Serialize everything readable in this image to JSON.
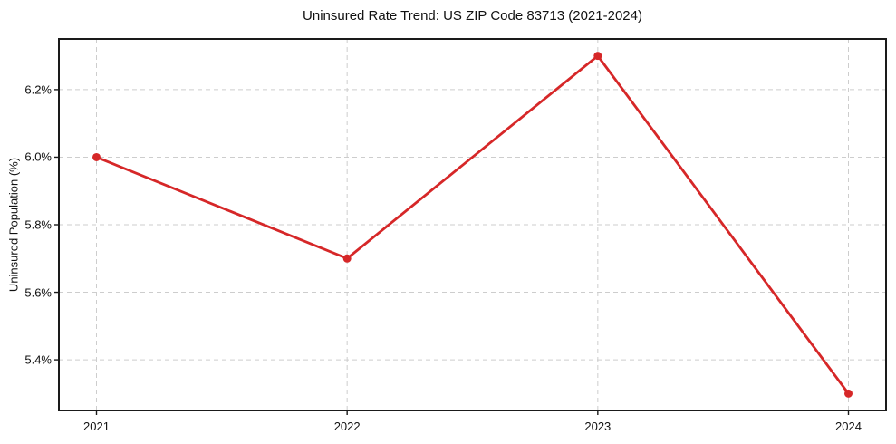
{
  "page": {
    "background_color": "#ffffff",
    "text_color": "#111111"
  },
  "chart_data": {
    "type": "line",
    "title": "Uninsured Rate Trend: US ZIP Code 83713 (2021-2024)",
    "xlabel": "",
    "ylabel": "Uninsured Population (%)",
    "x": [
      2021,
      2022,
      2023,
      2024
    ],
    "xtick_labels": [
      "2021",
      "2022",
      "2023",
      "2024"
    ],
    "series": [
      {
        "name": "uninsured-rate",
        "values": [
          6.0,
          5.7,
          6.3,
          5.3
        ],
        "color": "#d62728",
        "marker": "circle",
        "line_width": 2.8,
        "marker_radius": 4.5
      }
    ],
    "xlim": [
      2020.85,
      2024.15
    ],
    "ylim": [
      5.25,
      6.35
    ],
    "yticks": [
      5.4,
      5.6,
      5.8,
      6.0,
      6.2
    ],
    "ytick_labels": [
      "5.4%",
      "5.6%",
      "5.8%",
      "6.0%",
      "6.2%"
    ],
    "grid": true,
    "grid_color": "#cdcdcd",
    "grid_style": "dashed",
    "axis_color": "#1a1a1a",
    "tick_color": "#1a1a1a",
    "legend": false
  }
}
